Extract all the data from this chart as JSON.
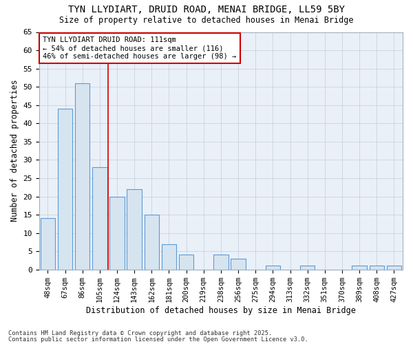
{
  "title1": "TYN LLYDIART, DRUID ROAD, MENAI BRIDGE, LL59 5BY",
  "title2": "Size of property relative to detached houses in Menai Bridge",
  "xlabel": "Distribution of detached houses by size in Menai Bridge",
  "ylabel": "Number of detached properties",
  "categories": [
    "48sqm",
    "67sqm",
    "86sqm",
    "105sqm",
    "124sqm",
    "143sqm",
    "162sqm",
    "181sqm",
    "200sqm",
    "219sqm",
    "238sqm",
    "256sqm",
    "275sqm",
    "294sqm",
    "313sqm",
    "332sqm",
    "351sqm",
    "370sqm",
    "389sqm",
    "408sqm",
    "427sqm"
  ],
  "values": [
    14,
    44,
    51,
    28,
    20,
    22,
    15,
    7,
    4,
    0,
    4,
    3,
    0,
    1,
    0,
    1,
    0,
    0,
    1,
    1,
    1
  ],
  "bar_color": "#d6e4f0",
  "bar_edge_color": "#5b9bd5",
  "bar_linewidth": 0.8,
  "red_line_x": 3.5,
  "annotation_title": "TYN LLYDIART DRUID ROAD: 111sqm",
  "annotation_line1": "← 54% of detached houses are smaller (116)",
  "annotation_line2": "46% of semi-detached houses are larger (98) →",
  "annotation_box_color": "#ffffff",
  "annotation_box_edge": "#cc0000",
  "ylim": [
    0,
    65
  ],
  "yticks": [
    0,
    5,
    10,
    15,
    20,
    25,
    30,
    35,
    40,
    45,
    50,
    55,
    60,
    65
  ],
  "grid_color": "#c8d4e0",
  "plot_bg_color": "#eaf0f8",
  "figure_bg_color": "#ffffff",
  "footer1": "Contains HM Land Registry data © Crown copyright and database right 2025.",
  "footer2": "Contains public sector information licensed under the Open Government Licence v3.0."
}
